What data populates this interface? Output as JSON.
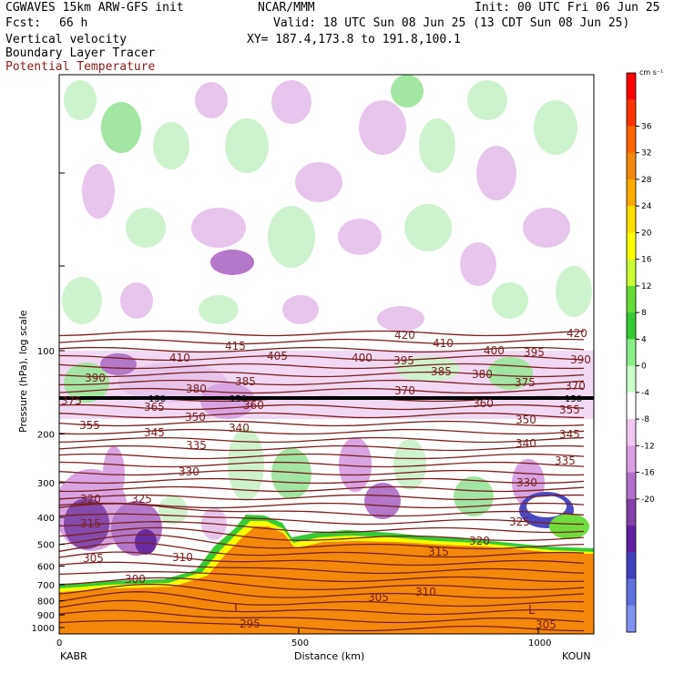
{
  "header": {
    "model": "CGWAVES 15km ARW-GFS init",
    "org": "NCAR/MMM",
    "init": "Init: 00 UTC Fri 06 Jun 25",
    "fcst_label": "Fcst:",
    "fcst_value": "66 h",
    "valid": "Valid: 18 UTC Sun 08 Jun 25 (13 CDT Sun 08 Jun 25)",
    "xy": "XY= 187.4,173.8 to 191.8,100.1",
    "field1": "Vertical velocity",
    "field2": "Boundary Layer Tracer",
    "field3": "Potential Temperature"
  },
  "colors": {
    "theta_line": "#7a1f1f",
    "tracer": "#f5870a",
    "field3_text": "#8b1a1a"
  },
  "chart_data": {
    "type": "heatmap",
    "title": "",
    "xlabel": "Distance (km)",
    "ylabel": "Pressure (hPa), log scale",
    "x_ticks": [
      "0",
      "500",
      "1000"
    ],
    "x_endpoints": [
      "KABR",
      "KOUN"
    ],
    "y_ticks": [
      "100",
      "200",
      "300",
      "400",
      "500",
      "600",
      "700",
      "800",
      "900",
      "1000"
    ],
    "y_scale": "log",
    "colorbar_unit": "cm s⁻¹",
    "colorbar_levels": [
      36,
      32,
      28,
      24,
      20,
      16,
      12,
      8,
      4,
      0,
      -4,
      -8,
      -12,
      -16,
      -20
    ],
    "colorbar_colors": [
      "#ff0000",
      "#ff3300",
      "#ff6600",
      "#f5870a",
      "#ffaa00",
      "#ffdd00",
      "#ffff00",
      "#ccff33",
      "#66dd33",
      "#33cc33",
      "#88ee88",
      "#ccffcc",
      "#ffffff",
      "#f0c8f0",
      "#d8a0e0",
      "#b070c8",
      "#8040a8",
      "#6020a0",
      "#4040c0",
      "#6070e0",
      "#8090f0"
    ],
    "theta_labels": [
      {
        "v": "420",
        "x": 433,
        "y": 372
      },
      {
        "v": "420",
        "x": 622,
        "y": 370
      },
      {
        "v": "415",
        "x": 247,
        "y": 384
      },
      {
        "v": "410",
        "x": 475,
        "y": 381
      },
      {
        "v": "410",
        "x": 186,
        "y": 397
      },
      {
        "v": "405",
        "x": 293,
        "y": 395
      },
      {
        "v": "400",
        "x": 386,
        "y": 397
      },
      {
        "v": "400",
        "x": 531,
        "y": 389
      },
      {
        "v": "395",
        "x": 575,
        "y": 391
      },
      {
        "v": "395",
        "x": 432,
        "y": 400
      },
      {
        "v": "390",
        "x": 93,
        "y": 419
      },
      {
        "v": "390",
        "x": 626,
        "y": 399
      },
      {
        "v": "385",
        "x": 258,
        "y": 423
      },
      {
        "v": "385",
        "x": 473,
        "y": 412
      },
      {
        "v": "380",
        "x": 204,
        "y": 431
      },
      {
        "v": "380",
        "x": 518,
        "y": 415
      },
      {
        "v": "375",
        "x": 565,
        "y": 424
      },
      {
        "v": "375",
        "x": 67,
        "y": 444
      },
      {
        "v": "370",
        "x": 433,
        "y": 433
      },
      {
        "v": "370",
        "x": 620,
        "y": 428
      },
      {
        "v": "365",
        "x": 158,
        "y": 451
      },
      {
        "v": "360",
        "x": 267,
        "y": 449
      },
      {
        "v": "360",
        "x": 519,
        "y": 447
      },
      {
        "v": "355",
        "x": 614,
        "y": 454
      },
      {
        "v": "350",
        "x": 203,
        "y": 462
      },
      {
        "v": "350",
        "x": 566,
        "y": 465
      },
      {
        "v": "355",
        "x": 87,
        "y": 471
      },
      {
        "v": "340",
        "x": 251,
        "y": 474
      },
      {
        "v": "345",
        "x": 158,
        "y": 479
      },
      {
        "v": "345",
        "x": 614,
        "y": 481
      },
      {
        "v": "335",
        "x": 204,
        "y": 493
      },
      {
        "v": "340",
        "x": 566,
        "y": 491
      },
      {
        "v": "335",
        "x": 609,
        "y": 510
      },
      {
        "v": "330",
        "x": 196,
        "y": 522
      },
      {
        "v": "330",
        "x": 567,
        "y": 534
      },
      {
        "v": "325",
        "x": 144,
        "y": 552
      },
      {
        "v": "320",
        "x": 88,
        "y": 552
      },
      {
        "v": "325",
        "x": 559,
        "y": 577
      },
      {
        "v": "315",
        "x": 88,
        "y": 579
      },
      {
        "v": "320",
        "x": 515,
        "y": 598
      },
      {
        "v": "310",
        "x": 189,
        "y": 616
      },
      {
        "v": "315",
        "x": 470,
        "y": 610
      },
      {
        "v": "305",
        "x": 91,
        "y": 617
      },
      {
        "v": "300",
        "x": 137,
        "y": 640
      },
      {
        "v": "310",
        "x": 456,
        "y": 654
      },
      {
        "v": "305",
        "x": 404,
        "y": 660
      },
      {
        "v": "295",
        "x": 263,
        "y": 689
      },
      {
        "v": "305",
        "x": 588,
        "y": 690
      }
    ],
    "l_markers": [
      "L",
      "L"
    ],
    "level_150_labels": [
      "150",
      "150",
      "150"
    ]
  }
}
